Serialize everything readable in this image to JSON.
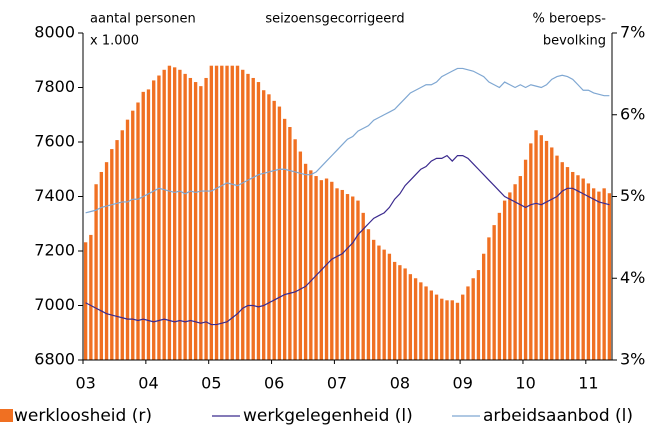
{
  "chart_data": {
    "type": "bar",
    "subtitle": "seizoensgecorrigeerd",
    "y_axis_label": [
      "aantal personen",
      "x 1.000"
    ],
    "y2_axis_label": [
      "% beroeps-",
      "bevolking"
    ],
    "categories": [
      "03",
      null,
      null,
      null,
      null,
      null,
      null,
      null,
      null,
      null,
      null,
      null,
      "04",
      null,
      null,
      null,
      null,
      null,
      null,
      null,
      null,
      null,
      null,
      null,
      "05",
      null,
      null,
      null,
      null,
      null,
      null,
      null,
      null,
      null,
      null,
      null,
      "06",
      null,
      null,
      null,
      null,
      null,
      null,
      null,
      null,
      null,
      null,
      null,
      "07",
      null,
      null,
      null,
      null,
      null,
      null,
      null,
      null,
      null,
      null,
      null,
      "08",
      null,
      null,
      null,
      null,
      null,
      null,
      null,
      null,
      null,
      null,
      null,
      "09",
      null,
      null,
      null,
      null,
      null,
      null,
      null,
      null,
      null,
      null,
      null,
      "10",
      null,
      null,
      null,
      null,
      null,
      null,
      null,
      null,
      null,
      null,
      null,
      "11",
      null,
      null,
      null,
      null
    ],
    "ylim": [
      6800,
      8000
    ],
    "yticks": [
      6800,
      7000,
      7200,
      7400,
      7600,
      7800,
      8000
    ],
    "y2lim": [
      3,
      7
    ],
    "y2ticks": [
      {
        "value": 3,
        "label": "3%"
      },
      {
        "value": 4,
        "label": "4%"
      },
      {
        "value": 5,
        "label": "5%"
      },
      {
        "value": 6,
        "label": "6%"
      },
      {
        "value": 7,
        "label": "7%"
      }
    ],
    "grid": false,
    "series": [
      {
        "name": "werkloosheid (r)",
        "type": "bar",
        "axis": "y2",
        "color": "#f07022",
        "values": [
          4.44,
          4.53,
          5.15,
          5.3,
          5.42,
          5.58,
          5.69,
          5.81,
          5.94,
          6.05,
          6.15,
          6.28,
          6.31,
          6.42,
          6.48,
          6.55,
          6.6,
          6.58,
          6.55,
          6.5,
          6.45,
          6.4,
          6.35,
          6.45,
          6.6,
          6.6,
          6.6,
          6.6,
          6.6,
          6.6,
          6.55,
          6.5,
          6.45,
          6.4,
          6.3,
          6.25,
          6.17,
          6.1,
          5.95,
          5.85,
          5.7,
          5.55,
          5.4,
          5.32,
          5.25,
          5.2,
          5.22,
          5.18,
          5.1,
          5.08,
          5.03,
          5.0,
          4.95,
          4.8,
          4.6,
          4.47,
          4.4,
          4.35,
          4.3,
          4.2,
          4.16,
          4.12,
          4.05,
          4.0,
          3.95,
          3.9,
          3.85,
          3.8,
          3.75,
          3.73,
          3.73,
          3.7,
          3.8,
          3.9,
          4.0,
          4.1,
          4.3,
          4.5,
          4.65,
          4.8,
          4.95,
          5.05,
          5.15,
          5.25,
          5.45,
          5.65,
          5.81,
          5.75,
          5.68,
          5.6,
          5.5,
          5.42,
          5.36,
          5.3,
          5.26,
          5.22,
          5.16,
          5.1,
          5.06,
          5.1,
          5.04
        ]
      },
      {
        "name": "werkgelegenheid (l)",
        "type": "line",
        "color": "#3b2a8e",
        "values": [
          7010,
          7000,
          6990,
          6980,
          6970,
          6965,
          6960,
          6955,
          6950,
          6950,
          6945,
          6950,
          6945,
          6940,
          6945,
          6950,
          6945,
          6940,
          6945,
          6940,
          6945,
          6940,
          6935,
          6940,
          6930,
          6930,
          6935,
          6940,
          6955,
          6970,
          6990,
          7000,
          7000,
          6995,
          7000,
          7010,
          7020,
          7030,
          7040,
          7045,
          7050,
          7060,
          7070,
          7090,
          7110,
          7130,
          7150,
          7170,
          7180,
          7190,
          7210,
          7230,
          7260,
          7280,
          7300,
          7320,
          7330,
          7340,
          7360,
          7390,
          7410,
          7440,
          7460,
          7480,
          7500,
          7510,
          7530,
          7540,
          7540,
          7550,
          7530,
          7550,
          7550,
          7540,
          7520,
          7500,
          7480,
          7460,
          7440,
          7420,
          7400,
          7390,
          7380,
          7370,
          7360,
          7370,
          7375,
          7370,
          7380,
          7390,
          7400,
          7420,
          7430,
          7430,
          7420,
          7410,
          7400,
          7390,
          7380,
          7375,
          7370
        ]
      },
      {
        "name": "arbeidsaanbod (l)",
        "type": "line",
        "color": "#7fa7d2",
        "values": [
          7340,
          7345,
          7350,
          7360,
          7365,
          7370,
          7375,
          7380,
          7380,
          7390,
          7390,
          7400,
          7410,
          7420,
          7430,
          7425,
          7420,
          7415,
          7420,
          7410,
          7420,
          7415,
          7420,
          7420,
          7420,
          7430,
          7440,
          7450,
          7445,
          7440,
          7450,
          7460,
          7470,
          7480,
          7485,
          7490,
          7495,
          7500,
          7500,
          7495,
          7490,
          7485,
          7480,
          7480,
          7490,
          7510,
          7530,
          7550,
          7570,
          7590,
          7610,
          7620,
          7640,
          7650,
          7660,
          7680,
          7690,
          7700,
          7710,
          7720,
          7740,
          7760,
          7780,
          7790,
          7800,
          7810,
          7810,
          7820,
          7840,
          7850,
          7860,
          7870,
          7870,
          7865,
          7860,
          7850,
          7840,
          7820,
          7810,
          7800,
          7820,
          7810,
          7800,
          7810,
          7800,
          7810,
          7805,
          7800,
          7810,
          7830,
          7840,
          7845,
          7840,
          7830,
          7810,
          7790,
          7790,
          7780,
          7775,
          7770,
          7770
        ]
      }
    ]
  }
}
